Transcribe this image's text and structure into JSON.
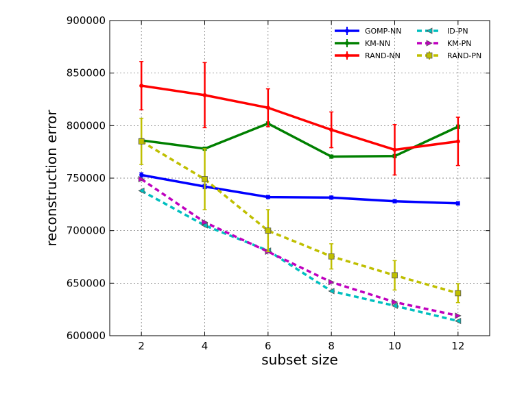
{
  "chart_data": {
    "type": "line",
    "title": "",
    "xlabel": "subset size",
    "ylabel": "reconstruction error",
    "xlim": [
      1,
      13
    ],
    "ylim": [
      600000,
      900000
    ],
    "grid": true,
    "legend_placement": "top-right",
    "x": [
      2,
      4,
      6,
      8,
      10,
      12
    ],
    "x_ticks": [
      "2",
      "4",
      "6",
      "8",
      "10",
      "12"
    ],
    "y_ticks": [
      "600000",
      "650000",
      "700000",
      "750000",
      "800000",
      "850000",
      "900000"
    ],
    "series": [
      {
        "name": "GOMP-NN",
        "color": "#0000ff",
        "style": "solid",
        "marker": "dot",
        "values": [
          753000,
          742000,
          732000,
          731500,
          728000,
          726000
        ],
        "err": [
          2000,
          2000,
          1500,
          1500,
          1500,
          1500
        ]
      },
      {
        "name": "KM-NN",
        "color": "#008000",
        "style": "solid",
        "marker": "dot",
        "values": [
          786000,
          778000,
          802000,
          770500,
          771000,
          799000
        ],
        "err": [
          1500,
          1500,
          1500,
          1500,
          1500,
          1500
        ]
      },
      {
        "name": "RAND-NN",
        "color": "#ff0000",
        "style": "solid",
        "marker": "dot",
        "values": [
          838000,
          829000,
          817000,
          796000,
          777000,
          785000
        ],
        "err": [
          23000,
          31000,
          18000,
          17000,
          24000,
          23000
        ]
      },
      {
        "name": "ID-PN",
        "color": "#00bfbf",
        "style": "dashed",
        "marker": "triangle",
        "values": [
          738000,
          705000,
          681000,
          642500,
          628500,
          614000
        ],
        "err": [
          0,
          0,
          0,
          0,
          0,
          0
        ]
      },
      {
        "name": "KM-PN",
        "color": "#bf00bf",
        "style": "dashed",
        "marker": "triangle-right",
        "values": [
          749000,
          708000,
          680000,
          651000,
          632000,
          619000
        ],
        "err": [
          0,
          0,
          0,
          0,
          0,
          0
        ]
      },
      {
        "name": "RAND-PN",
        "color": "#bfbf00",
        "style": "dashed",
        "marker": "square",
        "values": [
          785000,
          749000,
          700000,
          675500,
          657500,
          640500
        ],
        "err": [
          22000,
          29000,
          20000,
          12000,
          14000,
          9000
        ]
      }
    ]
  }
}
